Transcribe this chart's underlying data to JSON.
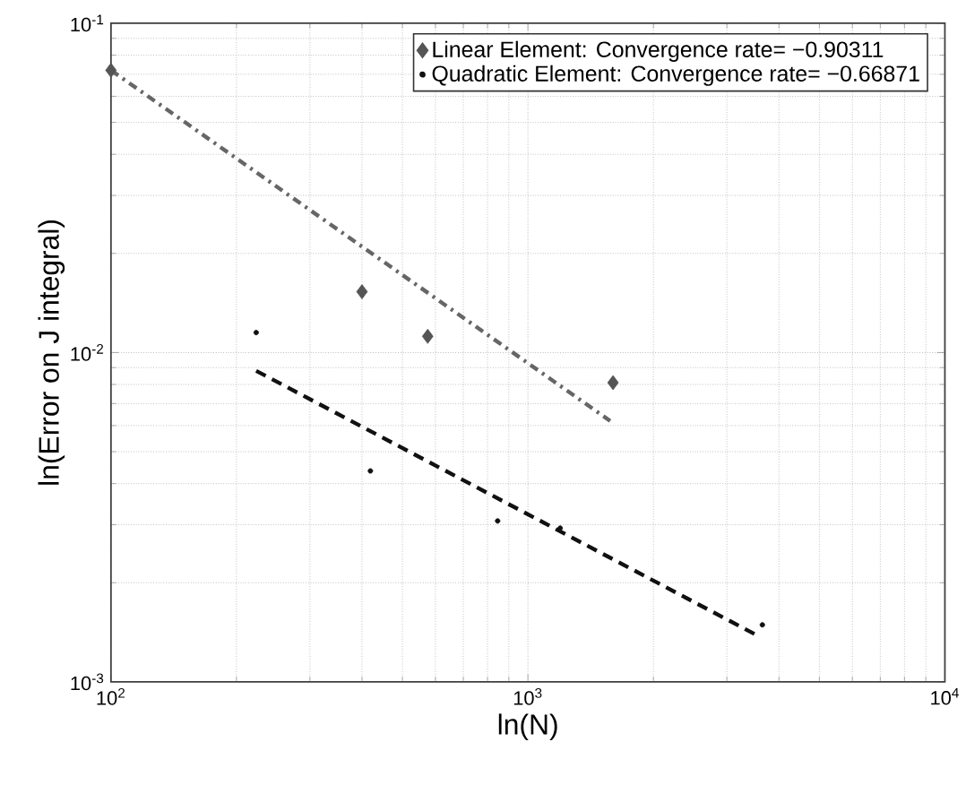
{
  "chart_data": {
    "type": "scatter",
    "xlabel": "ln(N)",
    "ylabel": "ln(Error on J integral)",
    "log": "xy",
    "grid": true,
    "legend": "top right",
    "xlim": [
      100,
      10000
    ],
    "ylim": [
      0.001,
      0.1
    ],
    "xticks": [
      {
        "value": 100,
        "label": "10$^{2}$"
      },
      {
        "value": 1000,
        "label": "10$^{3}$"
      },
      {
        "value": 10000,
        "label": "10$^{4}$"
      }
    ],
    "yticks": [
      {
        "value": 0.001,
        "label": "10$^{-3}$"
      },
      {
        "value": 0.01,
        "label": "10$^{-2}$"
      },
      {
        "value": 0.1,
        "label": "10$^{-1}$"
      }
    ],
    "series": [
      {
        "name": "Linear Element: Convergence rate= −0.90311",
        "type": "scatter",
        "marker": "diamond",
        "color": "#555555",
        "x": [
          100,
          400,
          575,
          1600
        ],
        "values": [
          0.072,
          0.0153,
          0.0112,
          0.0081
        ]
      },
      {
        "name": "Quadratic Element: Convergence rate= −0.66871",
        "type": "scatter",
        "marker": "circle",
        "color": "#111111",
        "x": [
          223,
          419,
          846,
          1195,
          3650
        ],
        "values": [
          0.0115,
          0.00437,
          0.00308,
          0.00293,
          0.00149
        ]
      },
      {
        "type": "line",
        "line_style": "dashdot",
        "color": "#666666",
        "x": [
          100,
          1575
        ],
        "values": [
          0.072,
          0.0062
        ]
      },
      {
        "type": "line",
        "line_style": "dashed",
        "color": "#111111",
        "x": [
          223,
          3600
        ],
        "values": [
          0.0088,
          0.00137
        ]
      }
    ]
  }
}
